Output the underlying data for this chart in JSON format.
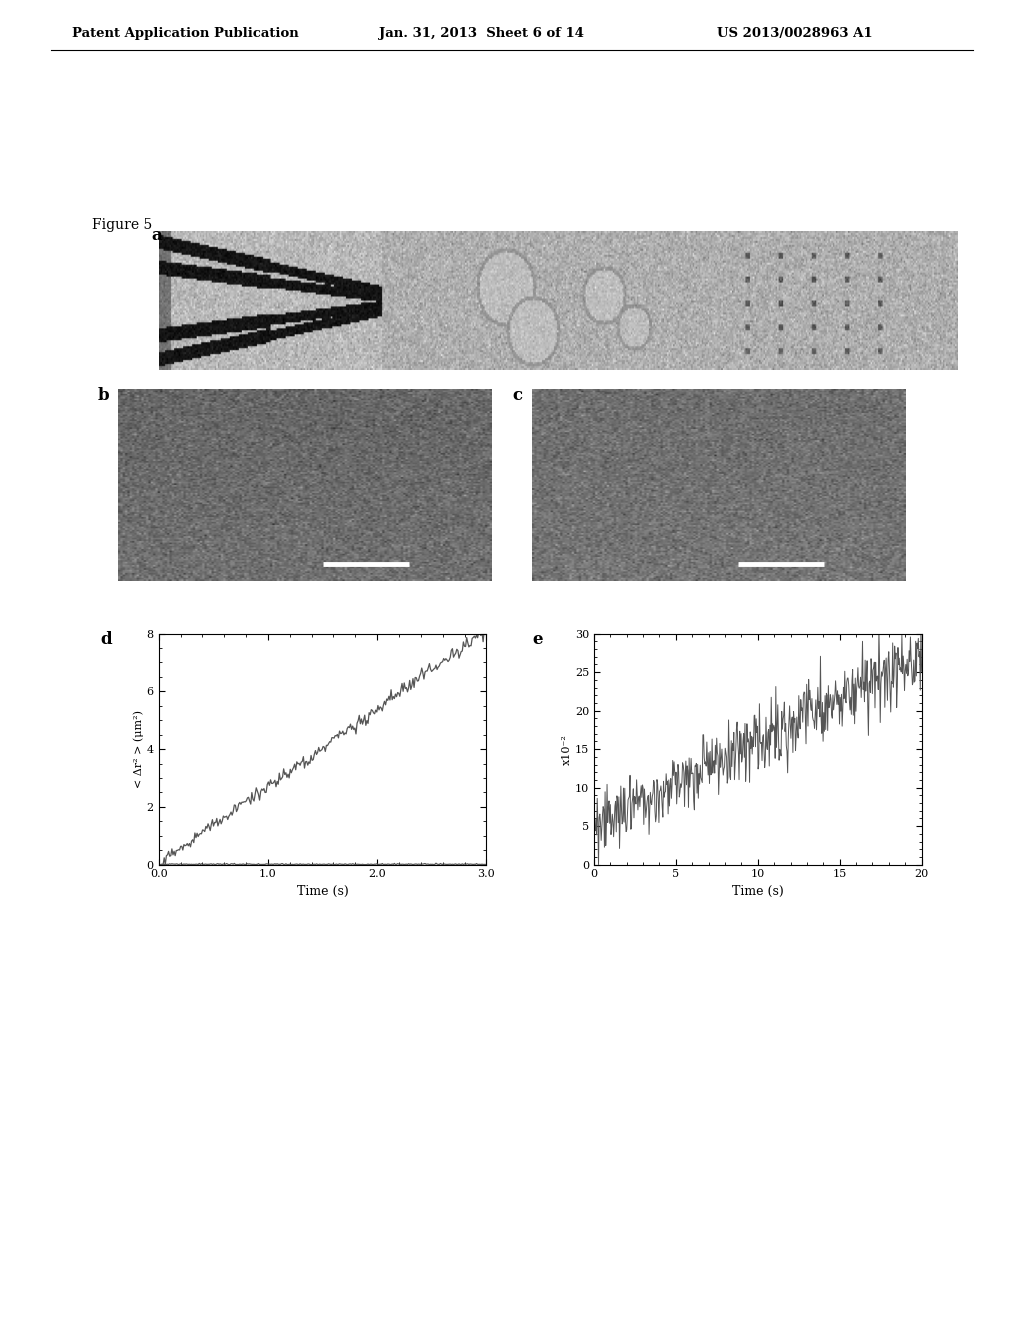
{
  "header_left": "Patent Application Publication",
  "header_mid": "Jan. 31, 2013  Sheet 6 of 14",
  "header_right": "US 2013/0028963 A1",
  "figure_label": "Figure 5",
  "panel_a_label": "a",
  "panel_b_label": "b",
  "panel_c_label": "c",
  "panel_d_label": "d",
  "panel_e_label": "e",
  "plot_d_xlabel": "Time (s)",
  "plot_d_ylabel": "< Δr² > (μm²)",
  "plot_d_xlim": [
    0.0,
    3.0
  ],
  "plot_d_ylim": [
    0,
    8
  ],
  "plot_d_xticks": [
    0.0,
    1.0,
    2.0,
    3.0
  ],
  "plot_d_yticks": [
    0,
    2,
    4,
    6,
    8
  ],
  "plot_e_xlabel": "Time (s)",
  "plot_e_ylabel": "x10⁻²",
  "plot_e_xlim": [
    0,
    20
  ],
  "plot_e_ylim": [
    0,
    30
  ],
  "plot_e_xticks": [
    0,
    5,
    10,
    15,
    20
  ],
  "plot_e_yticks": [
    0,
    5,
    10,
    15,
    20,
    25,
    30
  ],
  "bg_color": "#ffffff",
  "line_color": "#555555"
}
